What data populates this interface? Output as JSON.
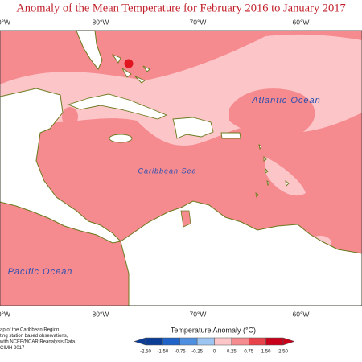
{
  "title": "Anomaly of the Mean Temperature for February 2016 to January 2017",
  "lon_labels_top": [
    "0°W",
    "80°W",
    "70°W",
    "60°W"
  ],
  "lon_labels_bottom": [
    "0°W",
    "80°W",
    "70°W",
    "60°W"
  ],
  "ocean_labels": [
    "Atlantic Ocean",
    "Caribbean Sea",
    "Pacific Ocean"
  ],
  "footnote": [
    "ap of the Caribbean Region.",
    "ting station based observations,",
    "with NCEP/NCAR Reanalysis Data.",
    "CIMH 2017"
  ],
  "legend": {
    "title": "Temperature Anomaly (°C)",
    "ticks": [
      "-2.50",
      "-1.50",
      "-0.75",
      "-0.25",
      "0",
      "0.25",
      "0.75",
      "1.50",
      "2.50"
    ],
    "colors": [
      "#0b3c96",
      "#1f63c8",
      "#4f8fe0",
      "#9cc5f2",
      "#ffffff",
      "#fcc6c9",
      "#f58a8f",
      "#e8424b",
      "#c8001a"
    ]
  }
}
